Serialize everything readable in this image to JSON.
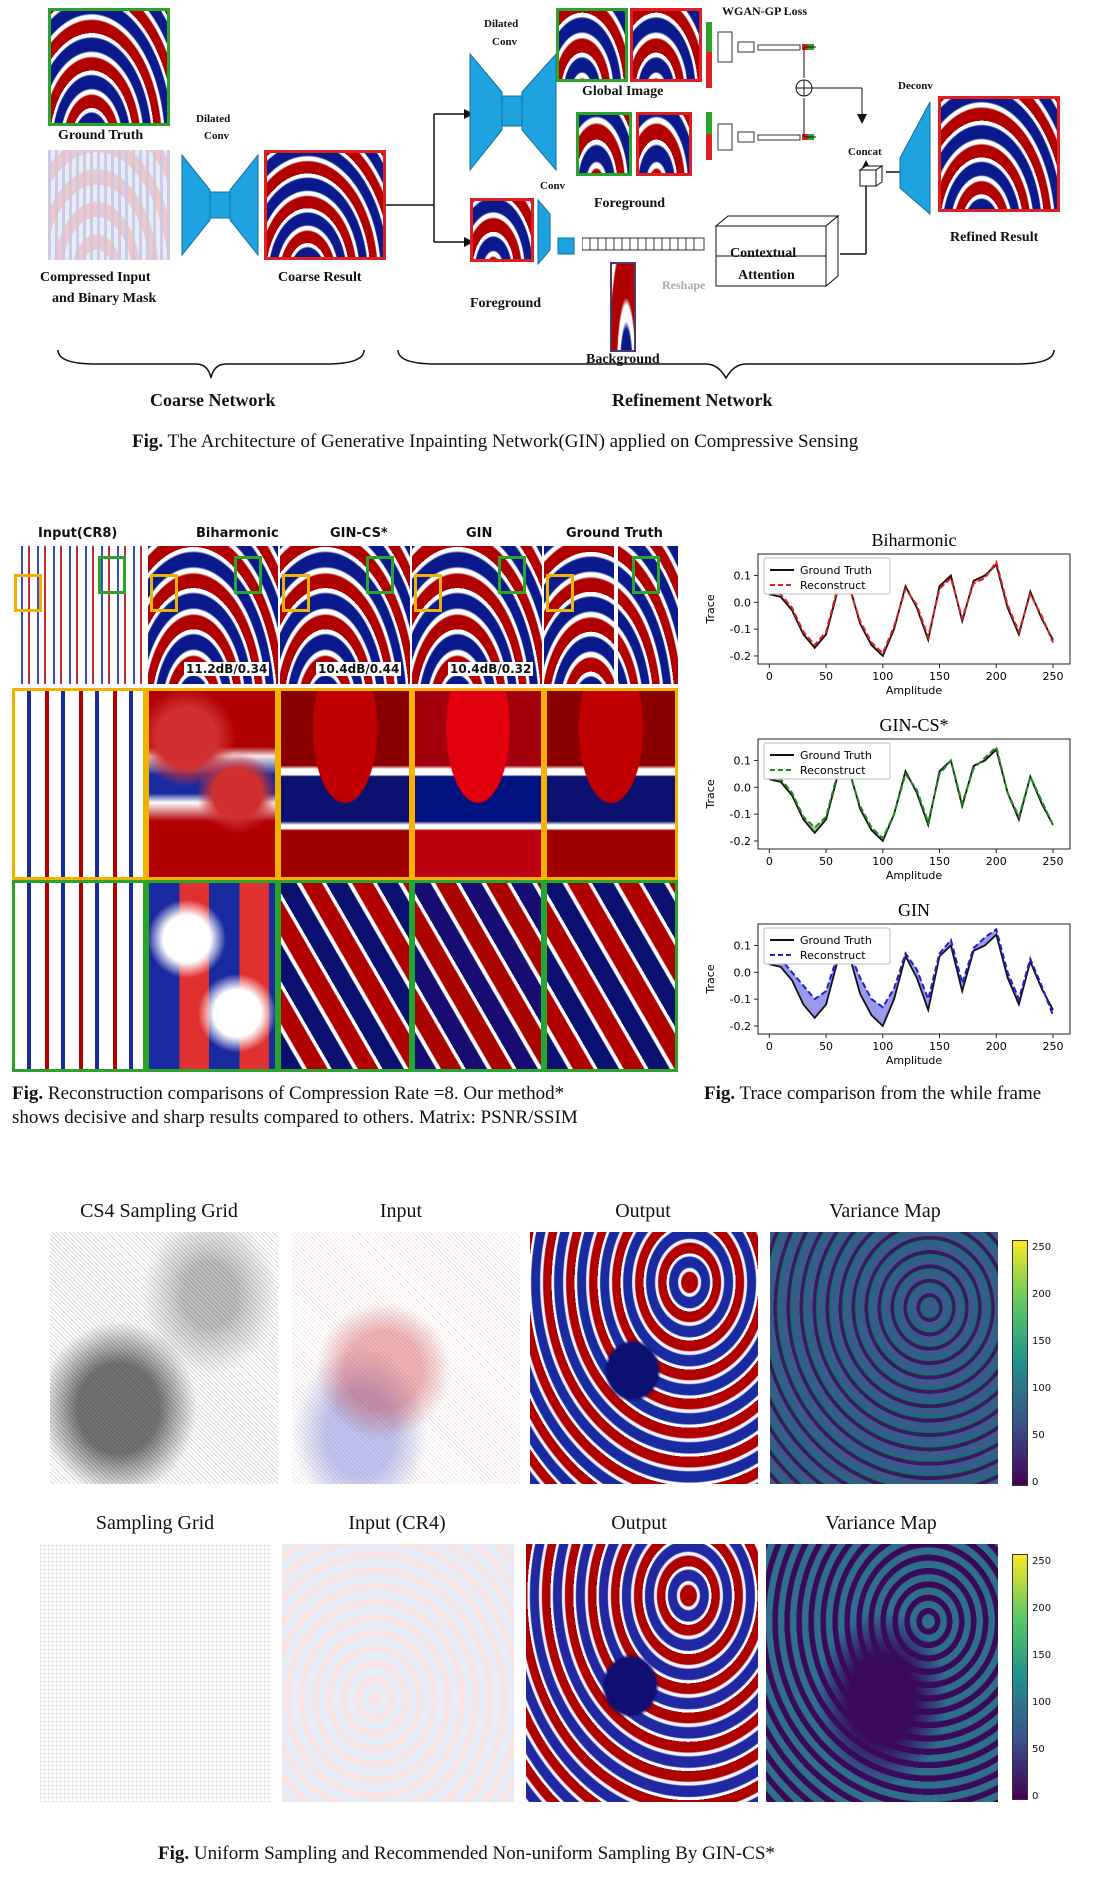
{
  "top_figure": {
    "labels": {
      "ground_truth": "Ground Truth",
      "compressed_input": "Compressed Input",
      "and_binary_mask": "and Binary Mask",
      "dilated_conv_1a": "Dilated",
      "dilated_conv_1b": "Conv",
      "coarse_result": "Coarse Result",
      "dilated_conv_2a": "Dilated",
      "dilated_conv_2b": "Conv",
      "wgan_loss": "WGAN-GP Loss",
      "global_image": "Global Image",
      "conv": "Conv",
      "foreground_top": "Foreground",
      "foreground_bottom": "Foreground",
      "reshape": "Reshape",
      "background": "Background",
      "contextual_attention_1": "Contextual",
      "contextual_attention_2": "Attention",
      "concat": "Concat",
      "deconv": "Deconv",
      "refined_result": "Refined Result",
      "coarse_network": "Coarse Network",
      "refinement_network": "Refinement Network",
      "plus": "+"
    },
    "caption_bold": "Fig.",
    "caption_text": " The Architecture of Generative Inpainting  Network(GIN) applied on Compressive Sensing"
  },
  "comparison_figure": {
    "columns": [
      "Input(CR8)",
      "Biharmonic",
      "GIN-CS*",
      "GIN",
      "Ground Truth"
    ],
    "metrics": [
      "11.2dB/0.34",
      "10.4dB/0.44",
      "10.4dB/0.32"
    ],
    "caption_bold": "Fig.",
    "caption_line1": " Reconstruction comparisons of Compression Rate =8. Our method*",
    "caption_line2": "shows decisive and sharp results compared to others. Matrix:  PSNR/SSIM"
  },
  "trace_figure": {
    "caption_bold": "Fig.",
    "caption_text": " Trace comparison from the while frame"
  },
  "chart_data": [
    {
      "type": "line",
      "title": "Biharmonic",
      "xlabel": "Amplitude",
      "ylabel": "Trace",
      "xlim": [
        -10,
        265
      ],
      "ylim": [
        -0.23,
        0.18
      ],
      "xticks": [
        "0",
        "50",
        "100",
        "150",
        "200",
        "250"
      ],
      "yticks": [
        "0.1",
        "0.0",
        "-0.1",
        "-0.2"
      ],
      "legend": "top-left",
      "x": [
        0,
        10,
        20,
        30,
        40,
        50,
        60,
        70,
        80,
        90,
        100,
        110,
        120,
        130,
        140,
        150,
        160,
        170,
        180,
        190,
        200,
        210,
        220,
        230,
        240,
        250
      ],
      "series": [
        {
          "name": "Ground Truth",
          "color": "#111111",
          "dash": "solid",
          "values": [
            0.03,
            0.02,
            -0.03,
            -0.12,
            -0.17,
            -0.12,
            0.04,
            0.07,
            -0.08,
            -0.16,
            -0.2,
            -0.1,
            0.06,
            -0.02,
            -0.14,
            0.06,
            0.1,
            -0.07,
            0.08,
            0.1,
            0.14,
            -0.02,
            -0.12,
            0.04,
            -0.06,
            -0.14
          ]
        },
        {
          "name": "Reconstruct",
          "color": "#e02020",
          "dash": "dashed",
          "values": [
            0.04,
            0.03,
            -0.02,
            -0.11,
            -0.16,
            -0.11,
            0.05,
            0.06,
            -0.07,
            -0.15,
            -0.19,
            -0.09,
            0.05,
            -0.01,
            -0.13,
            0.05,
            0.09,
            -0.06,
            0.07,
            0.09,
            0.15,
            -0.01,
            -0.11,
            0.03,
            -0.05,
            -0.15
          ]
        }
      ]
    },
    {
      "type": "line",
      "title": "GIN-CS*",
      "xlabel": "Amplitude",
      "ylabel": "Trace",
      "xlim": [
        -10,
        265
      ],
      "ylim": [
        -0.23,
        0.18
      ],
      "xticks": [
        "0",
        "50",
        "100",
        "150",
        "200",
        "250"
      ],
      "yticks": [
        "0.1",
        "0.0",
        "-0.1",
        "-0.2"
      ],
      "legend": "top-left",
      "x": [
        0,
        10,
        20,
        30,
        40,
        50,
        60,
        70,
        80,
        90,
        100,
        110,
        120,
        130,
        140,
        150,
        160,
        170,
        180,
        190,
        200,
        210,
        220,
        230,
        240,
        250
      ],
      "series": [
        {
          "name": "Ground Truth",
          "color": "#111111",
          "dash": "solid",
          "values": [
            0.03,
            0.02,
            -0.03,
            -0.12,
            -0.17,
            -0.12,
            0.04,
            0.07,
            -0.08,
            -0.16,
            -0.2,
            -0.1,
            0.06,
            -0.02,
            -0.14,
            0.06,
            0.1,
            -0.07,
            0.08,
            0.1,
            0.14,
            -0.02,
            -0.12,
            0.04,
            -0.06,
            -0.14
          ]
        },
        {
          "name": "Reconstruct",
          "color": "#1f8a1f",
          "dash": "dashed",
          "values": [
            0.04,
            0.03,
            -0.02,
            -0.11,
            -0.15,
            -0.11,
            0.05,
            0.06,
            -0.07,
            -0.15,
            -0.19,
            -0.1,
            0.05,
            -0.01,
            -0.13,
            0.05,
            0.1,
            -0.06,
            0.07,
            0.11,
            0.15,
            -0.02,
            -0.11,
            0.04,
            -0.05,
            -0.14
          ]
        }
      ]
    },
    {
      "type": "line",
      "title": "GIN",
      "xlabel": "Amplitude",
      "ylabel": "Trace",
      "xlim": [
        -10,
        265
      ],
      "ylim": [
        -0.23,
        0.18
      ],
      "xticks": [
        "0",
        "50",
        "100",
        "150",
        "200",
        "250"
      ],
      "yticks": [
        "0.1",
        "0.0",
        "-0.1",
        "-0.2"
      ],
      "legend": "top-left",
      "x": [
        0,
        10,
        20,
        30,
        40,
        50,
        60,
        70,
        80,
        90,
        100,
        110,
        120,
        130,
        140,
        150,
        160,
        170,
        180,
        190,
        200,
        210,
        220,
        230,
        240,
        250
      ],
      "series": [
        {
          "name": "Ground Truth",
          "color": "#111111",
          "dash": "solid",
          "values": [
            0.03,
            0.02,
            -0.03,
            -0.12,
            -0.17,
            -0.12,
            0.04,
            0.07,
            -0.08,
            -0.16,
            -0.2,
            -0.1,
            0.06,
            -0.02,
            -0.14,
            0.06,
            0.1,
            -0.07,
            0.08,
            0.1,
            0.14,
            -0.02,
            -0.12,
            0.04,
            -0.06,
            -0.14
          ]
        },
        {
          "name": "Reconstruct",
          "color": "#2020d0",
          "dash": "dashed",
          "values": [
            0.05,
            0.05,
            0.0,
            -0.05,
            -0.1,
            -0.07,
            0.06,
            0.08,
            -0.02,
            -0.1,
            -0.13,
            -0.06,
            0.07,
            0.01,
            -0.1,
            0.07,
            0.12,
            -0.04,
            0.09,
            0.13,
            0.16,
            0.0,
            -0.1,
            0.05,
            -0.05,
            -0.16
          ]
        }
      ]
    }
  ],
  "sampling_figure": {
    "row1_titles": [
      "CS4 Sampling Grid",
      "Input",
      "Output",
      "Variance Map"
    ],
    "row2_titles": [
      "Sampling Grid",
      "Input (CR4)",
      "Output",
      "Variance Map"
    ],
    "colorbar_ticks": [
      "250",
      "200",
      "150",
      "100",
      "50",
      "0"
    ],
    "caption_bold": "Fig.",
    "caption_text": " Uniform  Sampling and Recommended Non-uniform Sampling By GIN-CS*"
  }
}
